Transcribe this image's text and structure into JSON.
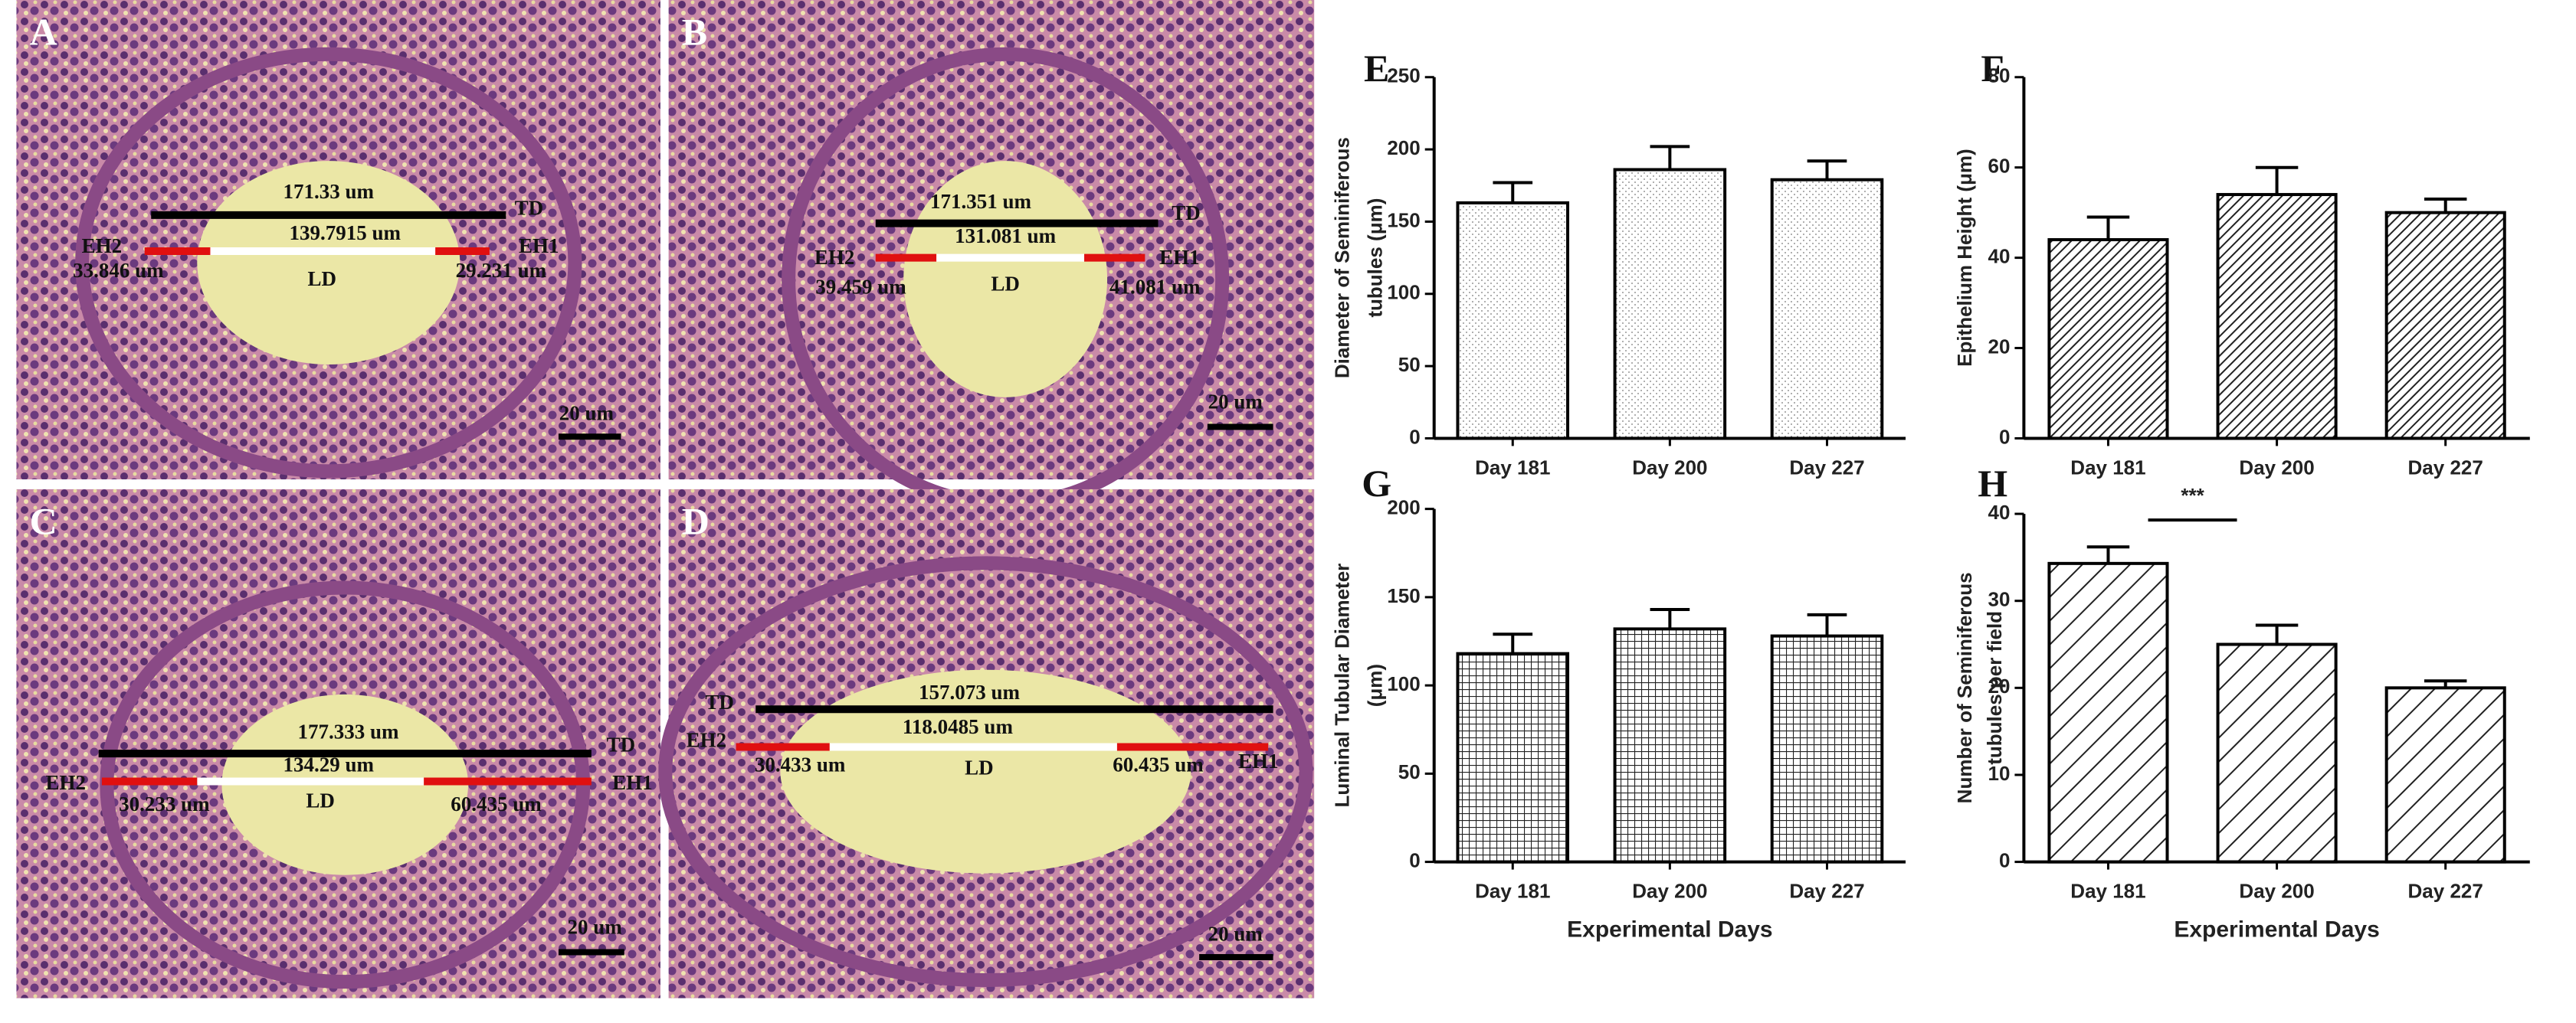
{
  "micrographs": [
    {
      "letter": "A",
      "labels": [
        "171.33 um",
        "TD",
        "139.7915 um",
        "EH2",
        "33.846 um",
        "LD",
        "29.231 um",
        "EH1"
      ],
      "scale_bar": "20 um"
    },
    {
      "letter": "B",
      "labels": [
        "171.351 um",
        "TD",
        "131.081 um",
        "EH2",
        "39.459 um",
        "LD",
        "41.081 um",
        "EH1"
      ],
      "scale_bar": "20 um"
    },
    {
      "letter": "C",
      "labels": [
        "177.333 um",
        "TD",
        "134.29 um",
        "EH2",
        "30.233 um",
        "LD",
        "60.435 um",
        "EH1"
      ],
      "scale_bar": "20 um"
    },
    {
      "letter": "D",
      "labels": [
        "157.073 um",
        "TD",
        "118.0485 um",
        "EH2",
        "30.433 um",
        "LD",
        "60.435 um",
        "EH1"
      ],
      "scale_bar": "20 um"
    }
  ],
  "chart_data": [
    {
      "type": "bar",
      "panel": "E",
      "ylabel": [
        "Diameter of Seminiferous",
        "tubules (μm)"
      ],
      "categories": [
        "Day 181",
        "Day 200",
        "Day 227"
      ],
      "values": [
        163,
        186,
        179
      ],
      "error": [
        14,
        16,
        13
      ],
      "ylim": [
        0,
        250
      ],
      "yticks": [
        0,
        50,
        100,
        150,
        200,
        250
      ],
      "pattern": "dots",
      "color": "#000000"
    },
    {
      "type": "bar",
      "panel": "F",
      "ylabel": [
        "Epithelium Height (μm)"
      ],
      "categories": [
        "Day 181",
        "Day 200",
        "Day 227"
      ],
      "values": [
        44,
        54,
        50
      ],
      "error": [
        5,
        6,
        3
      ],
      "ylim": [
        0,
        80
      ],
      "yticks": [
        0,
        20,
        40,
        60,
        80
      ],
      "pattern": "hatch",
      "color": "#000000"
    },
    {
      "type": "bar",
      "panel": "G",
      "ylabel": [
        "Luminal Tubular Diameter",
        "(μm)"
      ],
      "xlabel": "Experimental Days",
      "categories": [
        "Day 181",
        "Day 200",
        "Day 227"
      ],
      "values": [
        118,
        132,
        128
      ],
      "error": [
        11,
        11,
        12
      ],
      "ylim": [
        0,
        200
      ],
      "yticks": [
        0,
        50,
        100,
        150,
        200
      ],
      "pattern": "grid",
      "color": "#000000"
    },
    {
      "type": "bar",
      "panel": "H",
      "ylabel": [
        "Number of Seminiferous",
        "tubules per field"
      ],
      "xlabel": "Experimental Days",
      "annotation": "***",
      "categories": [
        "Day 181",
        "Day 200",
        "Day 227"
      ],
      "values": [
        34.3,
        25,
        20
      ],
      "error": [
        1.9,
        2.2,
        0.8
      ],
      "ylim": [
        0,
        40
      ],
      "yticks": [
        0,
        10,
        20,
        30,
        40
      ],
      "pattern": "wide-hatch",
      "color": "#000000"
    }
  ]
}
